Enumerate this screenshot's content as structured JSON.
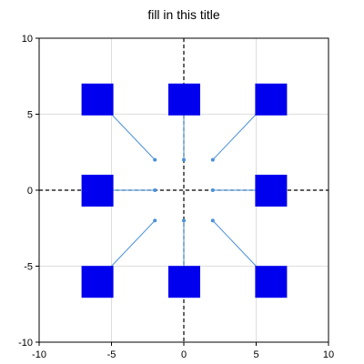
{
  "chart_data": {
    "type": "scatter",
    "title": "fill in this title",
    "xlim": [
      -10,
      10
    ],
    "ylim": [
      -10,
      10
    ],
    "xticks": [
      -10,
      -5,
      0,
      5,
      10
    ],
    "yticks": [
      -10,
      -5,
      0,
      5,
      10
    ],
    "xtick_labels": [
      "-10",
      "-5",
      "0",
      "5",
      "10"
    ],
    "ytick_labels": [
      "-10",
      "-5",
      "0",
      "5",
      "10"
    ],
    "grid": true,
    "zero_lines": true,
    "colors": {
      "box": "#0000ee",
      "connector": "#4a90d9",
      "axis_line": "#000000",
      "grid": "#dddddd"
    },
    "points": [
      {
        "x": -2,
        "y": 2
      },
      {
        "x": 0,
        "y": 2
      },
      {
        "x": 2,
        "y": 2
      },
      {
        "x": -2,
        "y": 0
      },
      {
        "x": 2,
        "y": 0
      },
      {
        "x": -2,
        "y": -2
      },
      {
        "x": 0,
        "y": -2
      },
      {
        "x": 2,
        "y": -2
      }
    ],
    "boxes": [
      {
        "label_x": -6,
        "label_y": 6,
        "anchor_x": -5,
        "anchor_y": 5
      },
      {
        "label_x": 0,
        "label_y": 6,
        "anchor_x": 0,
        "anchor_y": 5
      },
      {
        "label_x": 6,
        "label_y": 6,
        "anchor_x": 5,
        "anchor_y": 5
      },
      {
        "label_x": -6,
        "label_y": 0,
        "anchor_x": -5,
        "anchor_y": 0
      },
      {
        "label_x": 6,
        "label_y": 0,
        "anchor_x": 5,
        "anchor_y": 0
      },
      {
        "label_x": -6,
        "label_y": -6,
        "anchor_x": -5,
        "anchor_y": -5
      },
      {
        "label_x": 0,
        "label_y": -6,
        "anchor_x": 0,
        "anchor_y": -5
      },
      {
        "label_x": 6,
        "label_y": -6,
        "anchor_x": 5,
        "anchor_y": -5
      }
    ]
  }
}
